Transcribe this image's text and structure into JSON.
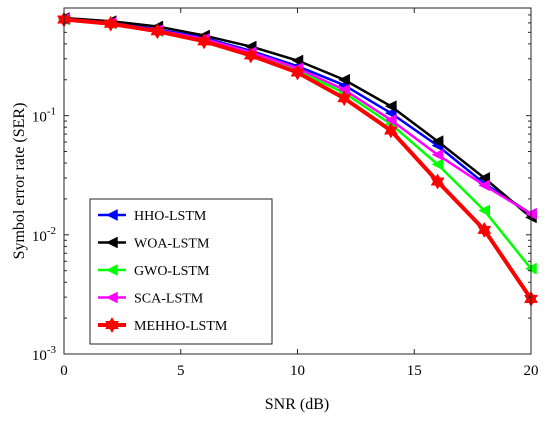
{
  "chart_data": {
    "type": "line",
    "title": "",
    "xlabel": "SNR (dB)",
    "ylabel": "Symbol error rate (SER)",
    "x": [
      0,
      2,
      4,
      6,
      8,
      10,
      12,
      14,
      16,
      18,
      20
    ],
    "xlim": [
      0,
      20
    ],
    "xticks": [
      0,
      5,
      10,
      15,
      20
    ],
    "ylim": [
      0.001,
      0.8
    ],
    "yscale": "log",
    "yticks": [
      0.001,
      0.01,
      0.1
    ],
    "ytick_labels": [
      {
        "base": "10",
        "exp": "-3"
      },
      {
        "base": "10",
        "exp": "-2"
      },
      {
        "base": "10",
        "exp": "-1"
      }
    ],
    "grid": false,
    "legend_position": "lower-left",
    "series": [
      {
        "name": "HHO-LSTM",
        "color": "#0000ff",
        "marker": "triangle-left",
        "values": [
          0.65,
          0.6,
          0.53,
          0.45,
          0.35,
          0.26,
          0.18,
          0.105,
          0.056,
          0.027,
          0.015
        ]
      },
      {
        "name": "WOA-LSTM",
        "color": "#000000",
        "marker": "triangle-left",
        "values": [
          0.66,
          0.62,
          0.56,
          0.47,
          0.38,
          0.29,
          0.2,
          0.12,
          0.061,
          0.03,
          0.014
        ]
      },
      {
        "name": "GWO-LSTM",
        "color": "#00ff00",
        "marker": "triangle-left",
        "values": [
          0.64,
          0.59,
          0.51,
          0.43,
          0.33,
          0.24,
          0.155,
          0.085,
          0.039,
          0.016,
          0.0052
        ]
      },
      {
        "name": "SCA-LSTM",
        "color": "#ff00ff",
        "marker": "triangle-left",
        "values": [
          0.65,
          0.6,
          0.52,
          0.44,
          0.34,
          0.25,
          0.165,
          0.092,
          0.047,
          0.026,
          0.015
        ]
      },
      {
        "name": "MEHHO-LSTM",
        "color": "#ff0000",
        "marker": "hexagram",
        "values": [
          0.64,
          0.59,
          0.51,
          0.42,
          0.32,
          0.23,
          0.14,
          0.075,
          0.028,
          0.011,
          0.0029
        ]
      }
    ]
  }
}
